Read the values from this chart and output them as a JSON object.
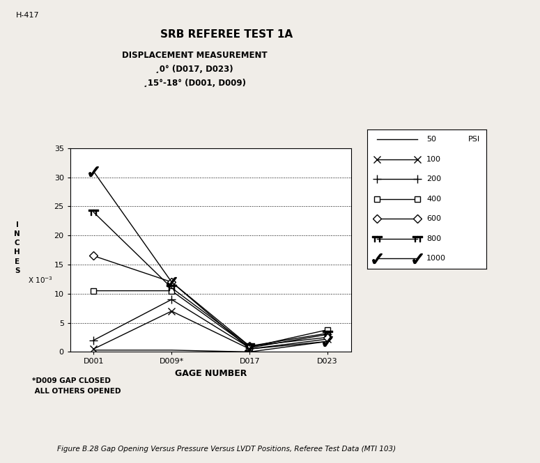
{
  "title": "SRB REFEREE TEST 1A",
  "subtitle1": "DISPLACEMENT MEASUREMENT",
  "subtitle2": "¸0° (D017, D023)",
  "subtitle3": "¸15°-18° (D001, D009)",
  "header_label": "H-417",
  "xlabel": "GAGE NUMBER",
  "xtick_labels": [
    "D001",
    "D009*",
    "D017",
    "D023"
  ],
  "yticks": [
    0,
    5,
    10,
    15,
    20,
    25,
    30,
    35
  ],
  "ylim": [
    0,
    35
  ],
  "footnote1": "*D009 GAP CLOSED",
  "footnote2": " ALL OTHERS OPENED",
  "figure_caption": "Figure B.28 Gap Opening Versus Pressure Versus LVDT Positions, Referee Test Data (MTI 103)",
  "series": [
    {
      "label": "50   PSI",
      "psi": 50,
      "values": [
        0.3,
        0.3,
        0.0,
        1.8
      ]
    },
    {
      "label": "100",
      "psi": 100,
      "values": [
        0.5,
        7.0,
        0.5,
        2.2
      ]
    },
    {
      "label": "200",
      "psi": 200,
      "values": [
        2.0,
        9.0,
        0.7,
        3.0
      ]
    },
    {
      "label": "400",
      "psi": 400,
      "values": [
        10.5,
        10.5,
        0.8,
        3.8
      ]
    },
    {
      "label": "600",
      "psi": 600,
      "values": [
        16.5,
        12.0,
        1.0,
        2.5
      ]
    },
    {
      "label": "800",
      "psi": 800,
      "values": [
        24.0,
        11.0,
        1.0,
        3.2
      ]
    },
    {
      "label": "1000",
      "psi": 1000,
      "values": [
        31.0,
        12.0,
        0.5,
        1.8
      ]
    }
  ],
  "background_color": "#f0ede8",
  "plot_bg_color": "white"
}
